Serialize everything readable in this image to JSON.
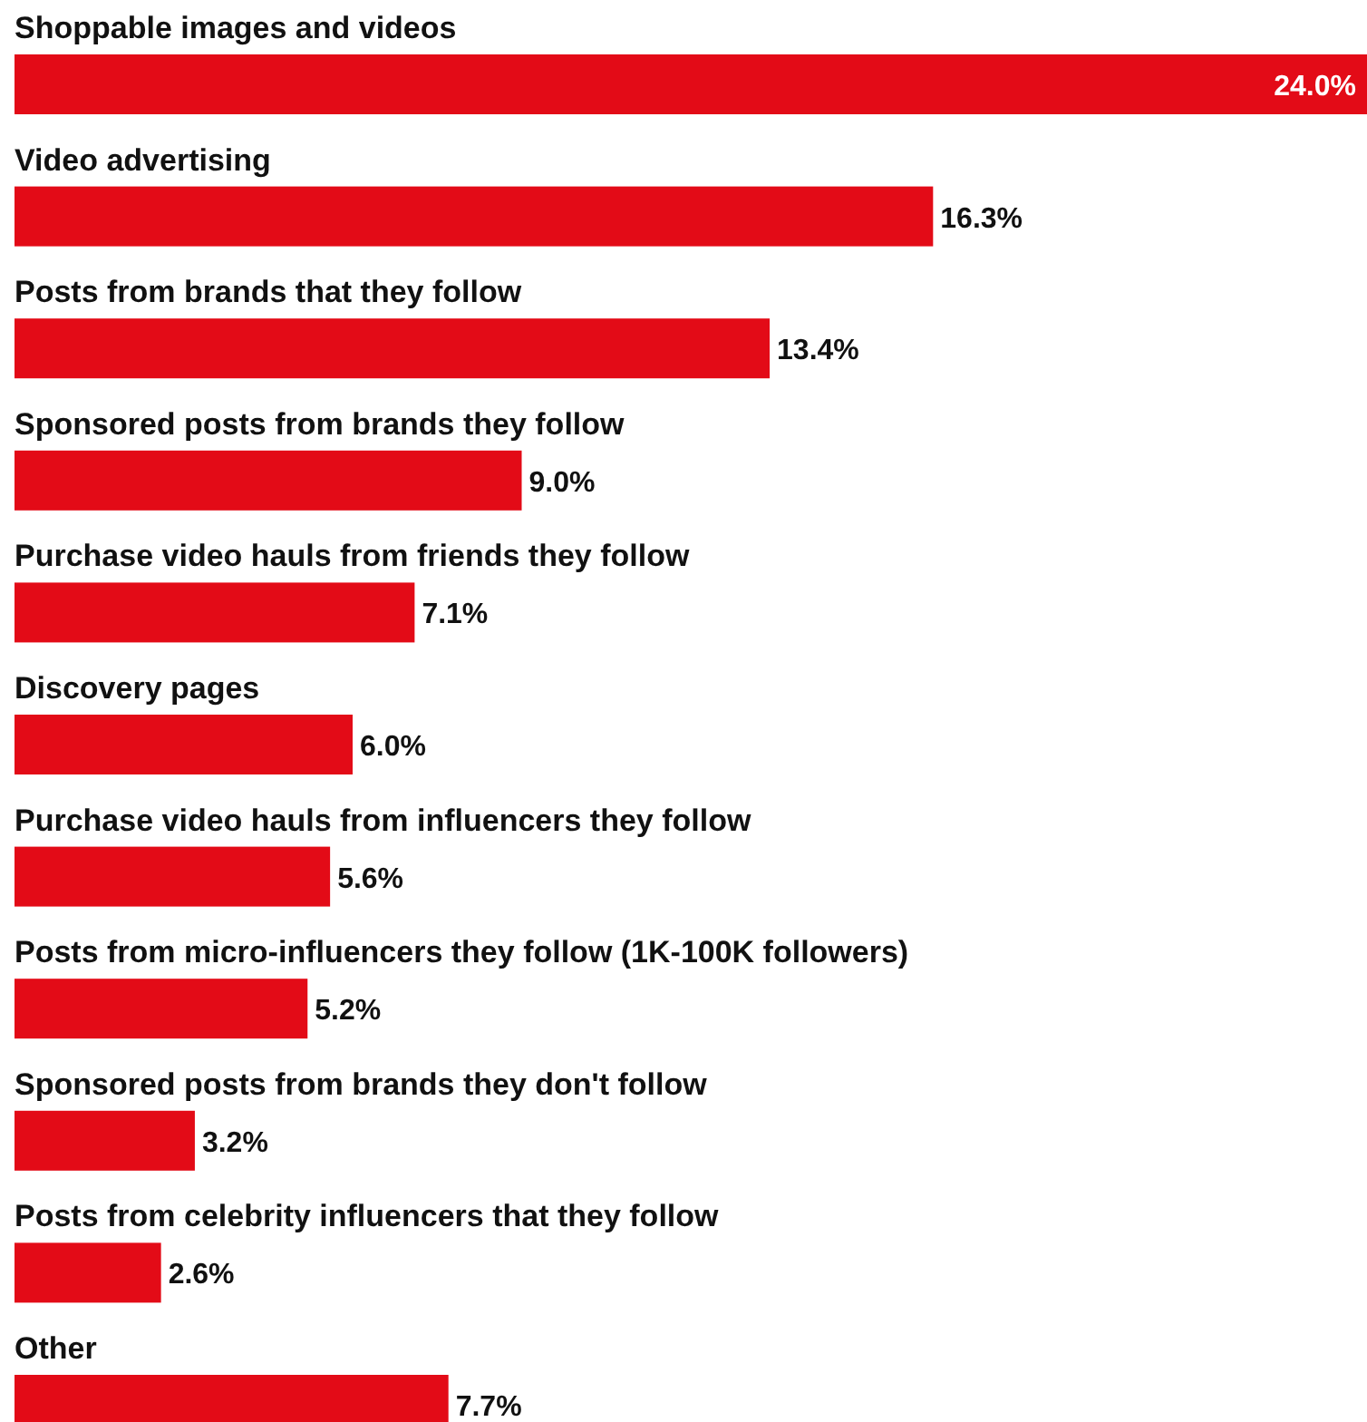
{
  "chart_data": {
    "type": "bar",
    "orientation": "horizontal",
    "categories": [
      "Shoppable images and videos",
      "Video advertising",
      "Posts from brands that they follow",
      "Sponsored posts from brands they follow",
      "Purchase video hauls from friends they follow",
      "Discovery pages",
      "Purchase video hauls from influencers they follow",
      "Posts from micro-influencers they follow (1K-100K followers)",
      "Sponsored posts from brands they don't follow",
      "Posts from celebrity influencers that they follow",
      "Other"
    ],
    "values": [
      24.0,
      16.3,
      13.4,
      9.0,
      7.1,
      6.0,
      5.6,
      5.2,
      3.2,
      2.6,
      7.7
    ],
    "value_labels": [
      "24.0%",
      "16.3%",
      "13.4%",
      "9.0%",
      "7.1%",
      "6.0%",
      "5.6%",
      "5.2%",
      "3.2%",
      "2.6%",
      "7.7%"
    ],
    "color": "#e30b17"
  }
}
